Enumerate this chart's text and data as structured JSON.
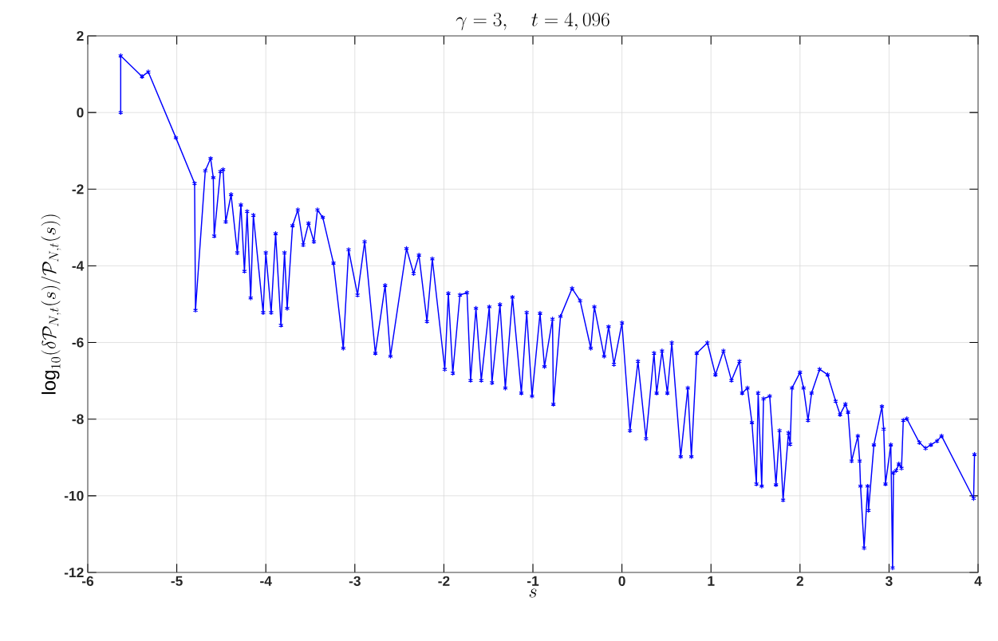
{
  "chart_data": {
    "type": "line",
    "title": "\\gamma =3, \\quad t = 4,096",
    "xlabel": "s",
    "ylabel": "\\log_{10}(\\delta\\mathcal{P}_{N,t}(s)/\\mathcal{P}_{N,t}(s))",
    "x": [
      -5.63,
      -5.63,
      -5.39,
      -5.32,
      -5.01,
      -4.8,
      -4.79,
      -4.68,
      -4.62,
      -4.59,
      -4.58,
      -4.51,
      -4.48,
      -4.45,
      -4.39,
      -4.32,
      -4.28,
      -4.24,
      -4.21,
      -4.17,
      -4.14,
      -4.03,
      -4.0,
      -3.94,
      -3.89,
      -3.83,
      -3.79,
      -3.76,
      -3.7,
      -3.64,
      -3.58,
      -3.52,
      -3.46,
      -3.42,
      -3.36,
      -3.24,
      -3.13,
      -3.07,
      -2.97,
      -2.89,
      -2.77,
      -2.66,
      -2.6,
      -2.42,
      -2.34,
      -2.28,
      -2.19,
      -2.13,
      -1.99,
      -1.95,
      -1.9,
      -1.82,
      -1.74,
      -1.7,
      -1.64,
      -1.58,
      -1.49,
      -1.46,
      -1.37,
      -1.31,
      -1.23,
      -1.13,
      -1.07,
      -1.01,
      -0.92,
      -0.87,
      -0.78,
      -0.77,
      -0.69,
      -0.56,
      -0.47,
      -0.35,
      -0.31,
      -0.2,
      -0.15,
      -0.09,
      0.0,
      0.09,
      0.18,
      0.27,
      0.36,
      0.39,
      0.45,
      0.51,
      0.56,
      0.66,
      0.74,
      0.78,
      0.84,
      0.96,
      1.05,
      1.14,
      1.23,
      1.32,
      1.35,
      1.41,
      1.46,
      1.51,
      1.53,
      1.57,
      1.59,
      1.66,
      1.73,
      1.77,
      1.81,
      1.87,
      1.89,
      1.91,
      2.0,
      2.04,
      2.09,
      2.13,
      2.22,
      2.31,
      2.4,
      2.45,
      2.51,
      2.54,
      2.58,
      2.65,
      2.67,
      2.68,
      2.72,
      2.76,
      2.77,
      2.83,
      2.92,
      2.94,
      2.96,
      3.02,
      3.04,
      3.05,
      3.08,
      3.11,
      3.14,
      3.16,
      3.2,
      3.34,
      3.41,
      3.47,
      3.54,
      3.59,
      3.95,
      3.96
    ],
    "values": [
      0.0,
      1.48,
      0.94,
      1.06,
      -0.66,
      -1.85,
      -5.16,
      -1.52,
      -1.2,
      -1.7,
      -3.22,
      -1.54,
      -1.49,
      -2.85,
      -2.14,
      -3.66,
      -2.41,
      -4.14,
      -2.58,
      -4.84,
      -2.68,
      -5.22,
      -3.66,
      -5.22,
      -3.16,
      -5.55,
      -3.66,
      -5.11,
      -2.95,
      -2.54,
      -3.45,
      -2.89,
      -3.37,
      -2.54,
      -2.74,
      -3.93,
      -6.15,
      -3.58,
      -4.76,
      -3.37,
      -6.28,
      -4.51,
      -6.36,
      -3.55,
      -4.2,
      -3.72,
      -5.45,
      -3.82,
      -6.7,
      -4.72,
      -6.8,
      -4.76,
      -4.7,
      -6.99,
      -5.11,
      -6.99,
      -5.07,
      -7.05,
      -5.01,
      -7.19,
      -4.82,
      -7.32,
      -5.22,
      -7.4,
      -5.24,
      -6.63,
      -5.39,
      -7.61,
      -5.32,
      -4.59,
      -4.91,
      -6.15,
      -5.07,
      -6.36,
      -5.59,
      -6.57,
      -5.49,
      -8.3,
      -6.49,
      -8.51,
      -6.28,
      -7.32,
      -6.22,
      -7.32,
      -6.01,
      -8.98,
      -7.19,
      -8.98,
      -6.28,
      -6.01,
      -6.84,
      -6.22,
      -6.99,
      -6.49,
      -7.32,
      -7.19,
      -8.09,
      -9.69,
      -7.32,
      -9.75,
      -7.47,
      -7.4,
      -9.71,
      -8.3,
      -10.11,
      -8.36,
      -8.65,
      -7.19,
      -6.78,
      -7.19,
      -8.03,
      -7.32,
      -6.7,
      -6.84,
      -7.53,
      -7.88,
      -7.61,
      -7.82,
      -9.09,
      -8.44,
      -9.09,
      -9.75,
      -11.36,
      -9.75,
      -10.38,
      -8.67,
      -7.67,
      -8.26,
      -9.69,
      -8.67,
      -11.88,
      -9.4,
      -9.34,
      -9.17,
      -9.28,
      -8.03,
      -7.99,
      -8.61,
      -8.76,
      -8.67,
      -8.57,
      -8.44,
      -10.07,
      -8.92
    ],
    "color": "#0000ff",
    "marker": "cross",
    "line_style": "solid",
    "grid": true,
    "xlim": [
      -6,
      4
    ],
    "xticks": [
      -6,
      -5,
      -4,
      -3,
      -2,
      -1,
      0,
      1,
      2,
      3,
      4
    ],
    "ylim": [
      -12,
      2
    ],
    "yticks": [
      -12,
      -10,
      -8,
      -6,
      -4,
      -2,
      0,
      2
    ]
  }
}
